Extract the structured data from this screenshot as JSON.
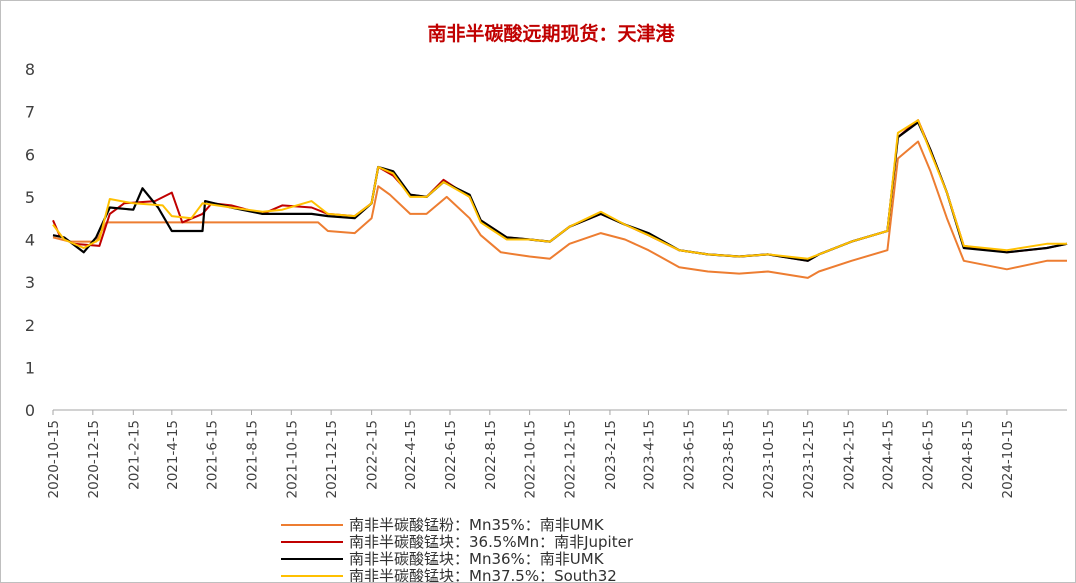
{
  "chart_data": {
    "type": "line",
    "title": "南非半碳酸远期现货：天津港",
    "xlabel": "",
    "ylabel": "",
    "ylim": [
      0,
      8
    ],
    "yticks": [
      "0",
      "1",
      "2",
      "3",
      "4",
      "5",
      "6",
      "7",
      "8"
    ],
    "xlim": [
      "2020-10-15",
      "2025-01-15"
    ],
    "xticks": [
      "2020-10-15",
      "2020-12-15",
      "2021-2-15",
      "2021-4-15",
      "2021-6-15",
      "2021-8-15",
      "2021-10-15",
      "2021-12-15",
      "2022-2-15",
      "2022-4-15",
      "2022-6-15",
      "2022-8-15",
      "2022-10-15",
      "2022-12-15",
      "2023-2-15",
      "2023-4-15",
      "2023-6-15",
      "2023-8-15",
      "2023-10-15",
      "2023-12-15",
      "2024-2-15",
      "2024-4-15",
      "2024-6-15",
      "2024-8-15",
      "2024-10-15"
    ],
    "grid": false,
    "legend_position": "bottom",
    "series": [
      {
        "name": "南非半碳酸锰粉：Mn35%：南非UMK",
        "color": "#ed7d31",
        "points": [
          [
            "2020-10-15",
            4.05
          ],
          [
            "2020-11-10",
            3.95
          ],
          [
            "2020-12-20",
            3.95
          ],
          [
            "2021-01-05",
            4.4
          ],
          [
            "2021-11-25",
            4.4
          ],
          [
            "2021-12-10",
            4.2
          ],
          [
            "2022-01-20",
            4.15
          ],
          [
            "2022-02-15",
            4.5
          ],
          [
            "2022-02-25",
            5.25
          ],
          [
            "2022-03-15",
            5.05
          ],
          [
            "2022-04-15",
            4.6
          ],
          [
            "2022-05-10",
            4.6
          ],
          [
            "2022-06-10",
            5.0
          ],
          [
            "2022-07-15",
            4.5
          ],
          [
            "2022-08-01",
            4.1
          ],
          [
            "2022-09-01",
            3.7
          ],
          [
            "2022-10-15",
            3.6
          ],
          [
            "2022-11-15",
            3.55
          ],
          [
            "2022-12-15",
            3.9
          ],
          [
            "2023-02-01",
            4.15
          ],
          [
            "2023-03-10",
            4.0
          ],
          [
            "2023-04-15",
            3.75
          ],
          [
            "2023-06-01",
            3.35
          ],
          [
            "2023-07-15",
            3.25
          ],
          [
            "2023-09-01",
            3.2
          ],
          [
            "2023-10-15",
            3.25
          ],
          [
            "2023-12-15",
            3.1
          ],
          [
            "2024-01-01",
            3.25
          ],
          [
            "2024-02-20",
            3.5
          ],
          [
            "2024-04-15",
            3.75
          ],
          [
            "2024-05-01",
            5.9
          ],
          [
            "2024-06-01",
            6.3
          ],
          [
            "2024-06-20",
            5.6
          ],
          [
            "2024-07-15",
            4.5
          ],
          [
            "2024-08-10",
            3.5
          ],
          [
            "2024-10-15",
            3.3
          ],
          [
            "2024-12-15",
            3.5
          ],
          [
            "2025-01-15",
            3.5
          ]
        ]
      },
      {
        "name": "南非半碳酸锰块：36.5%Mn：南非Jupiter",
        "color": "#c00000",
        "points": [
          [
            "2020-10-15",
            4.45
          ],
          [
            "2020-10-25",
            4.1
          ],
          [
            "2020-11-15",
            3.9
          ],
          [
            "2020-12-25",
            3.85
          ],
          [
            "2021-01-10",
            4.6
          ],
          [
            "2021-02-01",
            4.85
          ],
          [
            "2021-03-20",
            4.9
          ],
          [
            "2021-04-15",
            5.1
          ],
          [
            "2021-05-01",
            4.4
          ],
          [
            "2021-06-01",
            4.6
          ],
          [
            "2021-06-15",
            4.85
          ],
          [
            "2021-07-15",
            4.8
          ],
          [
            "2021-09-01",
            4.6
          ],
          [
            "2021-10-01",
            4.8
          ],
          [
            "2021-11-15",
            4.75
          ],
          [
            "2021-12-10",
            4.6
          ],
          [
            "2022-01-20",
            4.55
          ],
          [
            "2022-02-15",
            4.85
          ],
          [
            "2022-02-25",
            5.7
          ],
          [
            "2022-03-20",
            5.5
          ],
          [
            "2022-04-15",
            5.05
          ],
          [
            "2022-05-10",
            5.0
          ],
          [
            "2022-06-05",
            5.4
          ],
          [
            "2022-07-15",
            5.0
          ],
          [
            "2022-08-01",
            4.45
          ],
          [
            "2022-09-10",
            4.05
          ],
          [
            "2022-10-15",
            4.0
          ],
          [
            "2022-11-15",
            3.95
          ],
          [
            "2022-12-15",
            4.3
          ],
          [
            "2023-02-01",
            4.6
          ],
          [
            "2023-03-10",
            4.35
          ],
          [
            "2023-04-15",
            4.1
          ],
          [
            "2023-06-01",
            3.75
          ],
          [
            "2023-07-15",
            3.65
          ],
          [
            "2023-09-01",
            3.6
          ],
          [
            "2023-10-15",
            3.65
          ],
          [
            "2023-12-15",
            3.5
          ],
          [
            "2024-01-01",
            3.65
          ],
          [
            "2024-02-20",
            3.95
          ],
          [
            "2024-04-15",
            4.2
          ],
          [
            "2024-05-01",
            6.4
          ],
          [
            "2024-06-01",
            6.8
          ],
          [
            "2024-06-20",
            6.1
          ],
          [
            "2024-07-15",
            5.1
          ],
          [
            "2024-08-10",
            3.85
          ],
          [
            "2024-10-15",
            3.7
          ],
          [
            "2024-12-15",
            3.8
          ],
          [
            "2025-01-15",
            3.9
          ]
        ]
      },
      {
        "name": "南非半碳酸锰块：Mn36%：南非UMK",
        "color": "#000000",
        "points": [
          [
            "2020-10-15",
            4.1
          ],
          [
            "2020-11-01",
            4.05
          ],
          [
            "2020-12-01",
            3.7
          ],
          [
            "2020-12-20",
            4.05
          ],
          [
            "2021-01-10",
            4.75
          ],
          [
            "2021-02-15",
            4.7
          ],
          [
            "2021-03-01",
            5.2
          ],
          [
            "2021-03-25",
            4.75
          ],
          [
            "2021-04-15",
            4.2
          ],
          [
            "2021-06-01",
            4.2
          ],
          [
            "2021-06-05",
            4.9
          ],
          [
            "2021-07-15",
            4.75
          ],
          [
            "2021-09-01",
            4.6
          ],
          [
            "2021-10-01",
            4.6
          ],
          [
            "2021-11-15",
            4.6
          ],
          [
            "2021-12-10",
            4.55
          ],
          [
            "2022-01-20",
            4.5
          ],
          [
            "2022-02-15",
            4.85
          ],
          [
            "2022-02-25",
            5.7
          ],
          [
            "2022-03-20",
            5.6
          ],
          [
            "2022-04-15",
            5.05
          ],
          [
            "2022-05-10",
            5.0
          ],
          [
            "2022-06-05",
            5.35
          ],
          [
            "2022-07-15",
            5.05
          ],
          [
            "2022-08-01",
            4.45
          ],
          [
            "2022-09-10",
            4.05
          ],
          [
            "2022-10-15",
            4.0
          ],
          [
            "2022-11-15",
            3.95
          ],
          [
            "2022-12-15",
            4.3
          ],
          [
            "2023-02-01",
            4.6
          ],
          [
            "2023-03-10",
            4.35
          ],
          [
            "2023-04-15",
            4.15
          ],
          [
            "2023-06-01",
            3.75
          ],
          [
            "2023-07-15",
            3.65
          ],
          [
            "2023-09-01",
            3.6
          ],
          [
            "2023-10-15",
            3.65
          ],
          [
            "2023-12-15",
            3.5
          ],
          [
            "2024-01-01",
            3.65
          ],
          [
            "2024-02-20",
            3.95
          ],
          [
            "2024-04-15",
            4.2
          ],
          [
            "2024-05-01",
            6.4
          ],
          [
            "2024-06-01",
            6.75
          ],
          [
            "2024-06-20",
            6.1
          ],
          [
            "2024-07-15",
            5.1
          ],
          [
            "2024-08-10",
            3.8
          ],
          [
            "2024-10-15",
            3.7
          ],
          [
            "2024-12-15",
            3.8
          ],
          [
            "2025-01-15",
            3.9
          ]
        ]
      },
      {
        "name": "南非半碳酸锰块：Mn37.5%：South32",
        "color": "#ffc000",
        "points": [
          [
            "2020-10-15",
            4.35
          ],
          [
            "2020-11-01",
            4.0
          ],
          [
            "2020-12-01",
            3.8
          ],
          [
            "2020-12-25",
            4.0
          ],
          [
            "2021-01-10",
            4.95
          ],
          [
            "2021-02-15",
            4.85
          ],
          [
            "2021-04-01",
            4.8
          ],
          [
            "2021-04-15",
            4.55
          ],
          [
            "2021-05-15",
            4.5
          ],
          [
            "2021-06-01",
            4.85
          ],
          [
            "2021-07-15",
            4.75
          ],
          [
            "2021-09-01",
            4.65
          ],
          [
            "2021-10-01",
            4.7
          ],
          [
            "2021-11-15",
            4.9
          ],
          [
            "2021-12-10",
            4.6
          ],
          [
            "2022-01-20",
            4.55
          ],
          [
            "2022-02-15",
            4.85
          ],
          [
            "2022-02-25",
            5.7
          ],
          [
            "2022-03-20",
            5.55
          ],
          [
            "2022-04-15",
            5.0
          ],
          [
            "2022-05-10",
            5.0
          ],
          [
            "2022-06-05",
            5.35
          ],
          [
            "2022-07-15",
            5.0
          ],
          [
            "2022-08-01",
            4.4
          ],
          [
            "2022-09-10",
            4.0
          ],
          [
            "2022-10-15",
            4.0
          ],
          [
            "2022-11-15",
            3.95
          ],
          [
            "2022-12-15",
            4.3
          ],
          [
            "2023-02-01",
            4.65
          ],
          [
            "2023-03-10",
            4.35
          ],
          [
            "2023-04-15",
            4.1
          ],
          [
            "2023-06-01",
            3.75
          ],
          [
            "2023-07-15",
            3.65
          ],
          [
            "2023-09-01",
            3.6
          ],
          [
            "2023-10-15",
            3.65
          ],
          [
            "2023-12-15",
            3.55
          ],
          [
            "2024-01-01",
            3.65
          ],
          [
            "2024-02-20",
            3.95
          ],
          [
            "2024-04-15",
            4.2
          ],
          [
            "2024-05-01",
            6.5
          ],
          [
            "2024-06-01",
            6.8
          ],
          [
            "2024-06-20",
            6.05
          ],
          [
            "2024-07-15",
            5.1
          ],
          [
            "2024-08-10",
            3.85
          ],
          [
            "2024-10-15",
            3.75
          ],
          [
            "2024-12-15",
            3.9
          ],
          [
            "2025-01-15",
            3.9
          ]
        ]
      }
    ]
  }
}
